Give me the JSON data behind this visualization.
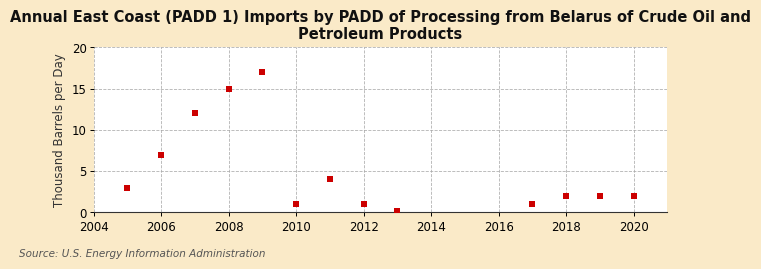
{
  "title_line1": "Annual East Coast (PADD 1) Imports by PADD of Processing from Belarus of Crude Oil and",
  "title_line2": "Petroleum Products",
  "ylabel": "Thousand Barrels per Day",
  "source": "Source: U.S. Energy Information Administration",
  "fig_bg_color": "#faeac8",
  "plot_bg_color": "#ffffff",
  "marker_color": "#cc0000",
  "x_data": [
    2005,
    2006,
    2007,
    2008,
    2009,
    2010,
    2011,
    2012,
    2013,
    2017,
    2018,
    2019,
    2020
  ],
  "y_data": [
    3,
    7,
    12,
    15,
    17,
    1,
    4,
    1,
    0.1,
    1,
    2,
    2,
    2
  ],
  "xlim": [
    2004,
    2021
  ],
  "ylim": [
    0,
    20
  ],
  "xticks": [
    2004,
    2006,
    2008,
    2010,
    2012,
    2014,
    2016,
    2018,
    2020
  ],
  "yticks": [
    0,
    5,
    10,
    15,
    20
  ],
  "title_fontsize": 10.5,
  "axis_label_fontsize": 8.5,
  "tick_fontsize": 8.5,
  "source_fontsize": 7.5,
  "grid_color": "#aaaaaa",
  "grid_linestyle": "--",
  "grid_linewidth": 0.6
}
